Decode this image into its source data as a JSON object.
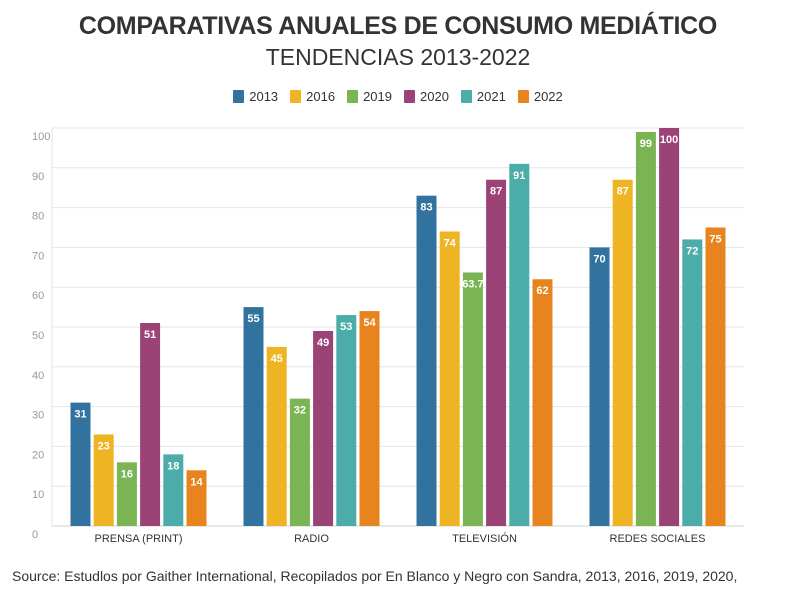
{
  "source_text": "Source: Estudlos por Gaither International, Recopilados por En Blanco y Negro con Sandra, 2013, 2016, 2019, 2020,",
  "chart_data": {
    "type": "bar",
    "title": "COMPARATIVAS ANUALES DE CONSUMO MEDIÁTICO",
    "subtitle": "TENDENCIAS 2013-2022",
    "categories": [
      "PRENSA (PRINT)",
      "RADIO",
      "TELEVISIÓN",
      "REDES SOCIALES"
    ],
    "series": [
      {
        "name": "2013",
        "color": "#31739e",
        "values": [
          31,
          55,
          83,
          70
        ],
        "labels": [
          "31",
          "55",
          "83",
          "70"
        ]
      },
      {
        "name": "2016",
        "color": "#eeb423",
        "values": [
          23,
          45,
          74,
          87
        ],
        "labels": [
          "23",
          "45",
          "74",
          "87"
        ]
      },
      {
        "name": "2019",
        "color": "#7ab453",
        "values": [
          16,
          32,
          63.7,
          99
        ],
        "labels": [
          "16",
          "32",
          "63.7",
          "99"
        ]
      },
      {
        "name": "2020",
        "color": "#9b4377",
        "values": [
          51,
          49,
          87,
          100
        ],
        "labels": [
          "51",
          "49",
          "87",
          "100"
        ]
      },
      {
        "name": "2021",
        "color": "#4bacaa",
        "values": [
          18,
          53,
          91,
          72
        ],
        "labels": [
          "18",
          "53",
          "91",
          "72"
        ]
      },
      {
        "name": "2022",
        "color": "#e7841d",
        "values": [
          14,
          54,
          62,
          75
        ],
        "labels": [
          "14",
          "54",
          "62",
          "75"
        ]
      }
    ],
    "ylim": [
      0,
      100
    ],
    "yticks": [
      "0",
      "10",
      "20",
      "30",
      "40",
      "50",
      "60",
      "70",
      "80",
      "90",
      "100"
    ],
    "grid": true,
    "legend": "top-center",
    "xlabel": "",
    "ylabel": ""
  }
}
